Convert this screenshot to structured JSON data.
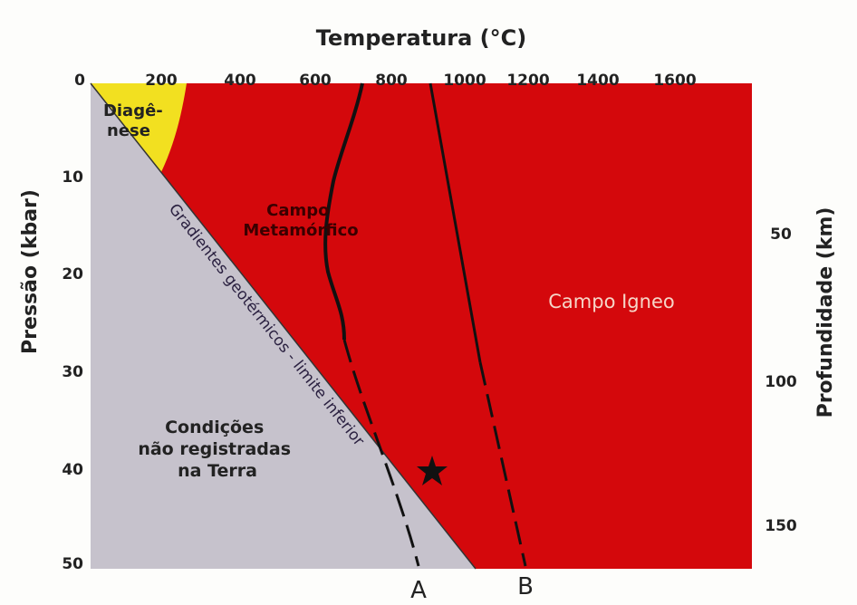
{
  "title": "Temperatura (°C)",
  "top_axis": {
    "ticks": [
      0,
      200,
      400,
      600,
      800,
      1000,
      1200,
      1400,
      1600
    ]
  },
  "left_axis": {
    "label": "Pressão (kbar)",
    "ticks": [
      10,
      20,
      30,
      40,
      50
    ]
  },
  "right_axis": {
    "label": "Profundidade (km)",
    "ticks": [
      50,
      100,
      150
    ]
  },
  "regions": {
    "diagenese": [
      "Diagê-",
      "nese"
    ],
    "metamorfico": [
      "Campo",
      "Metamórfico"
    ],
    "igneo": "Campo Igneo",
    "nao_registradas": [
      "Condições",
      "não registradas",
      "na Terra"
    ],
    "gradiente": "Gradientes geotérmicos - limite inferior"
  },
  "curves": {
    "a": "A",
    "b": "B"
  }
}
